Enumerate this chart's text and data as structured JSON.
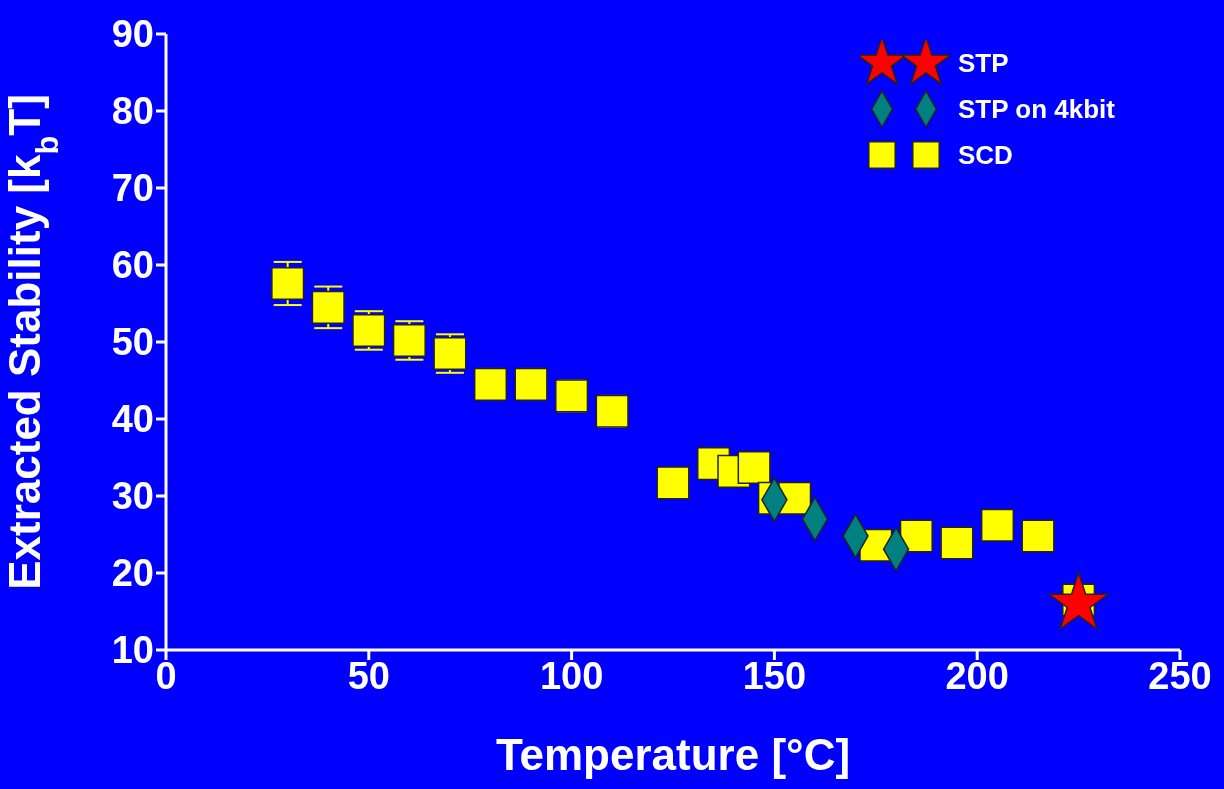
{
  "chart_data": {
    "type": "scatter",
    "xlabel": "Temperature [°C]",
    "ylabel": "Extracted Stability [k$_{b}$T]",
    "xlim": [
      0,
      250
    ],
    "xticks": [
      0,
      50,
      100,
      150,
      200,
      250
    ],
    "ylim": [
      10,
      90
    ],
    "yticks": [
      10,
      20,
      30,
      40,
      50,
      60,
      70,
      80,
      90
    ],
    "grid": false,
    "legend": "top right",
    "series": [
      {
        "name": "STP",
        "color": "#ff0000",
        "marker": "star",
        "x": [
          225
        ],
        "values": [
          16
        ]
      },
      {
        "name": "STP on 4kbit",
        "color": "#008080",
        "marker": "diamond",
        "x": [
          150,
          160,
          170,
          180
        ],
        "values": [
          29.5,
          27,
          24.8,
          23.1
        ]
      },
      {
        "name": "SCD",
        "color": "#ffff00",
        "marker": "square",
        "x": [
          30,
          40,
          50,
          60,
          70,
          80,
          90,
          100,
          110,
          125,
          135,
          140,
          145,
          150,
          155,
          175,
          185,
          195,
          205,
          215,
          225
        ],
        "values": [
          57.6,
          54.5,
          51.5,
          50.2,
          48.5,
          44.5,
          44.5,
          43,
          41,
          31.7,
          34.2,
          33.2,
          33.7,
          29.7,
          29.7,
          23.6,
          24.8,
          23.9,
          26.2,
          24.8,
          16.5
        ],
        "errors": [
          2.8,
          2.7,
          2.5,
          2.5,
          2.5,
          2,
          2,
          2,
          2,
          null,
          null,
          null,
          null,
          null,
          null,
          null,
          null,
          null,
          null,
          null,
          null
        ]
      }
    ]
  }
}
